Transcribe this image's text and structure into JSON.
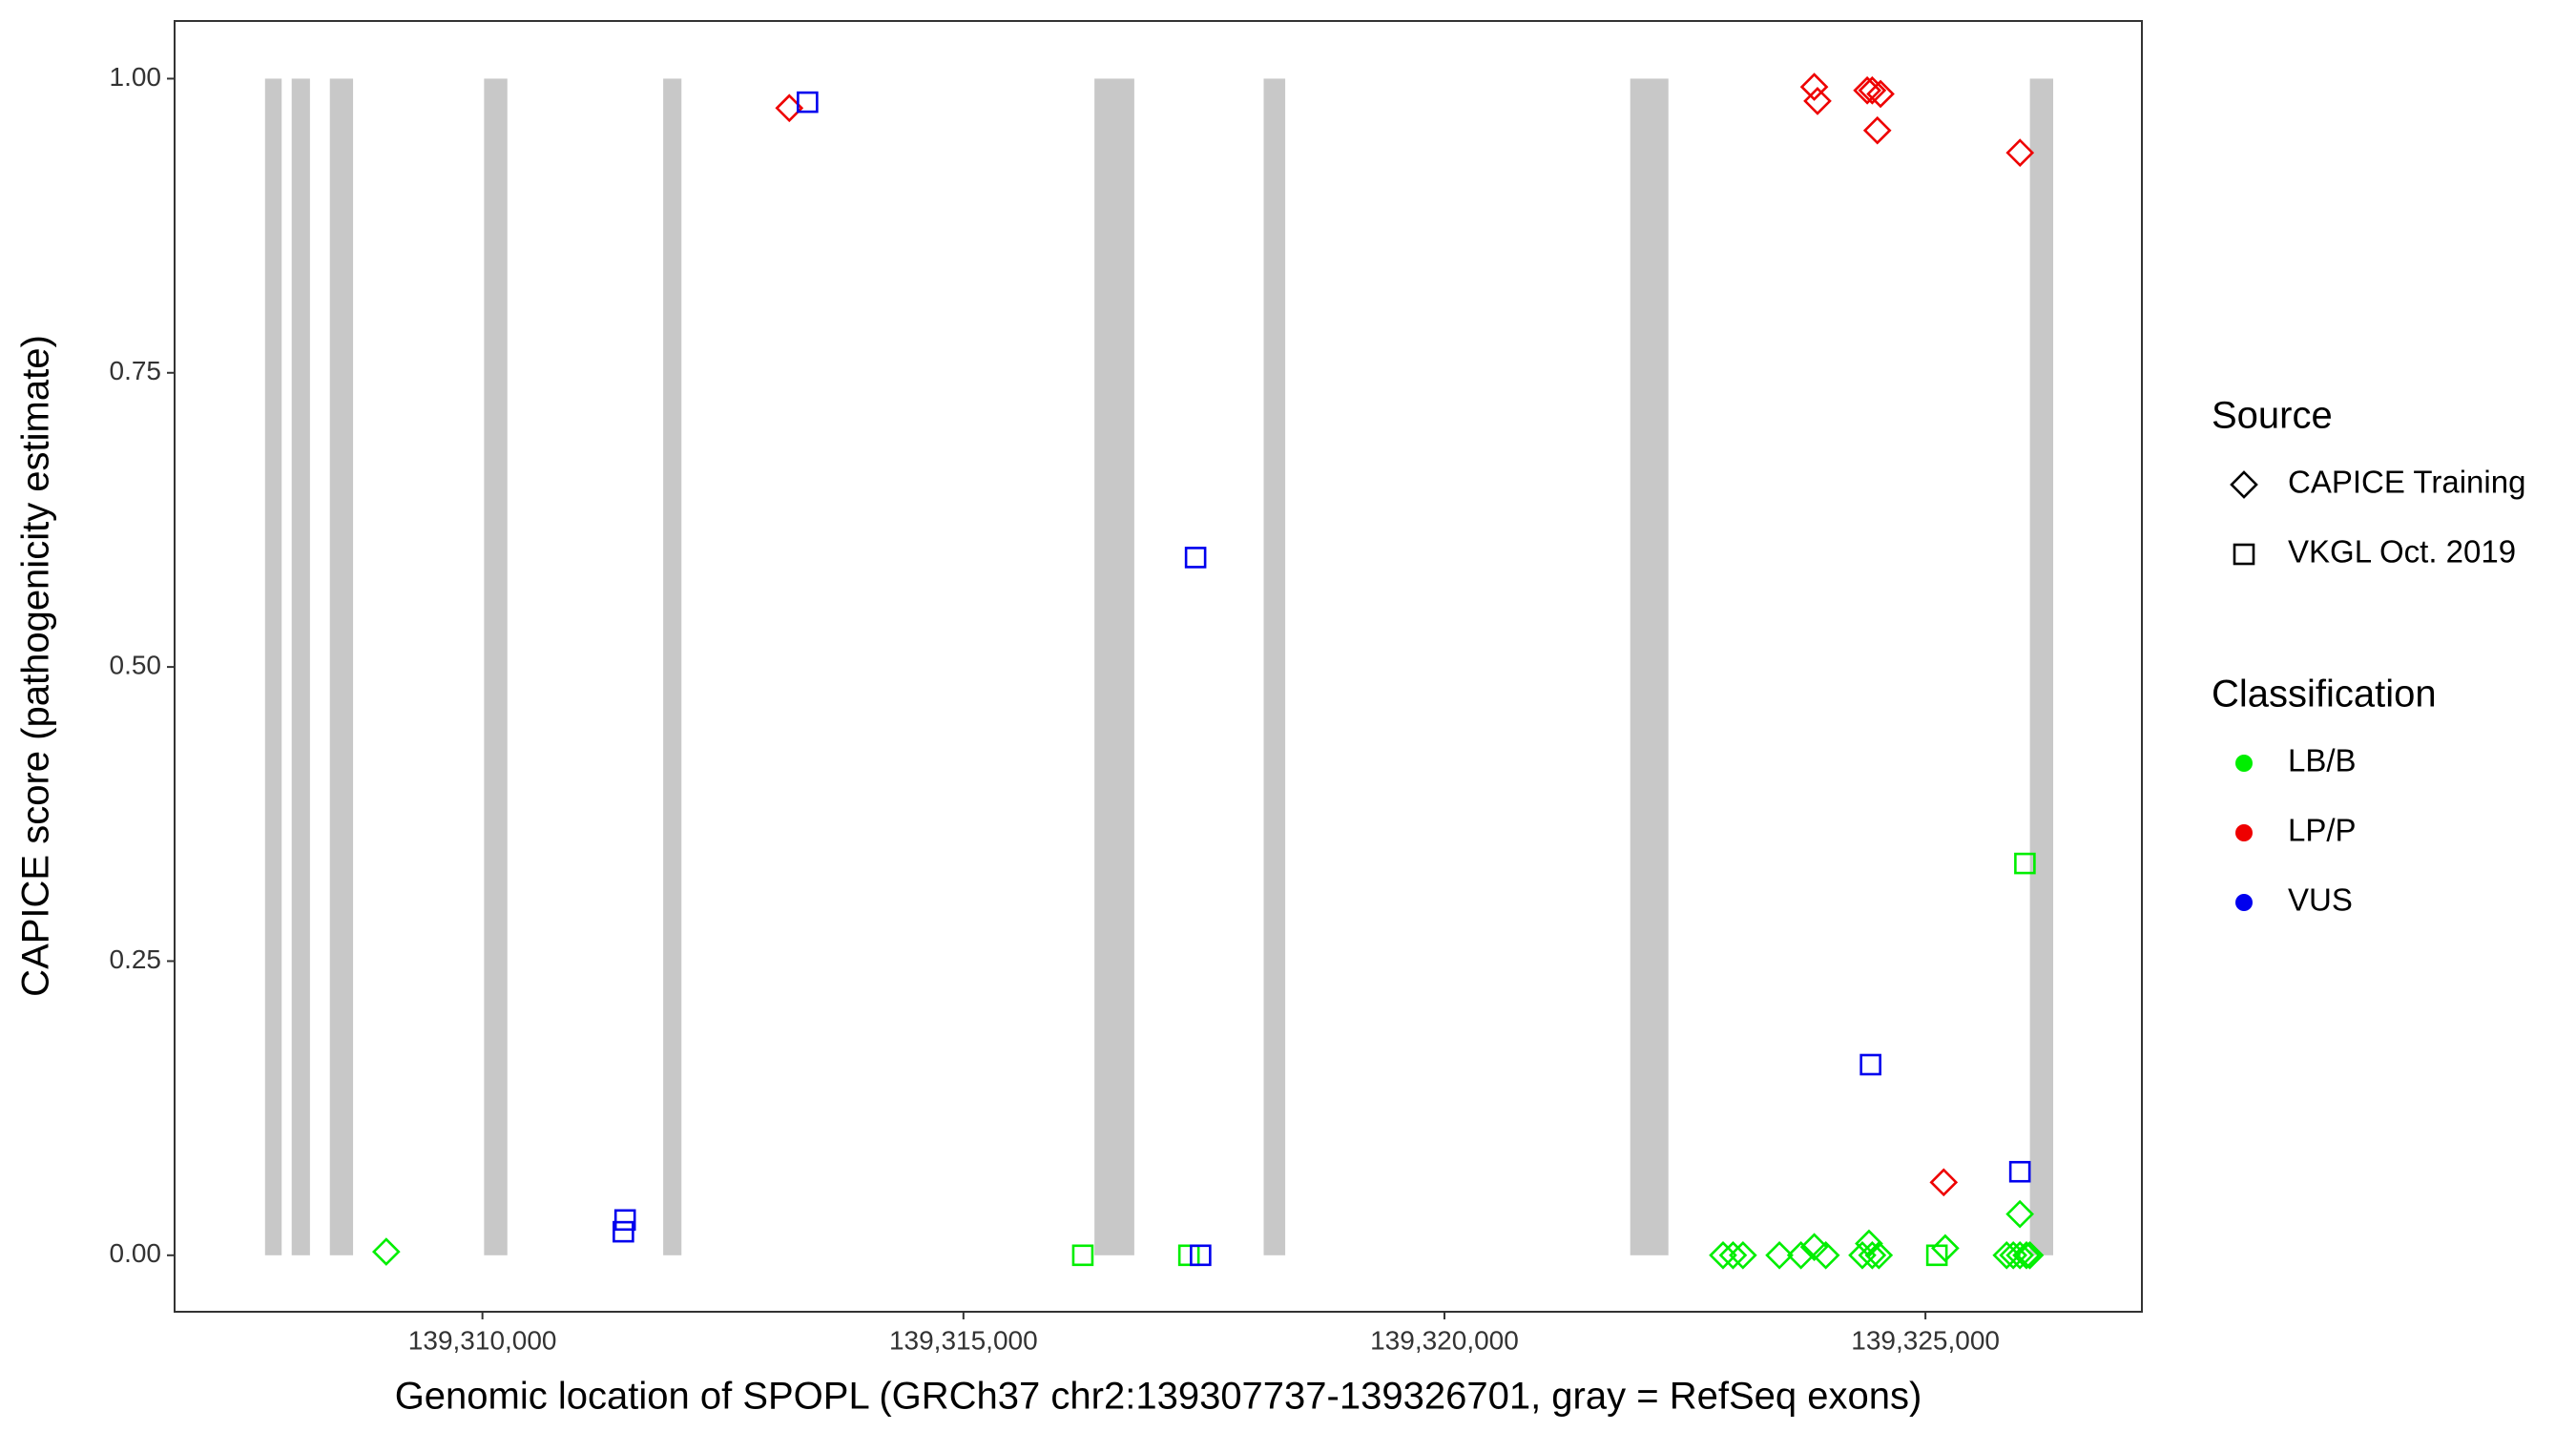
{
  "chart_data": {
    "type": "scatter",
    "x_label": "Genomic location of SPOPL (GRCh37 chr2:139307737-139326701, gray = RefSeq exons)",
    "y_label": "CAPICE score (pathogenicity estimate)",
    "xlim": [
      139306800,
      139327250
    ],
    "ylim": [
      -0.048,
      1.049
    ],
    "xticks": [
      {
        "value": 139310000,
        "label": "139,310,000"
      },
      {
        "value": 139315000,
        "label": "139,315,000"
      },
      {
        "value": 139320000,
        "label": "139,320,000"
      },
      {
        "value": 139325000,
        "label": "139,325,000"
      }
    ],
    "yticks": [
      {
        "value": 0,
        "label": "0.00"
      },
      {
        "value": 0.25,
        "label": "0.25"
      },
      {
        "value": 0.5,
        "label": "0.50"
      },
      {
        "value": 0.75,
        "label": "0.75"
      },
      {
        "value": 1,
        "label": "1.00"
      }
    ],
    "exon_color": "#c8c8c8",
    "exons": [
      [
        139307740,
        139307913
      ],
      [
        139308017,
        139308207
      ],
      [
        139308414,
        139308655
      ],
      [
        139310017,
        139310259
      ],
      [
        139311879,
        139312069
      ],
      [
        139316362,
        139316776
      ],
      [
        139318121,
        139318345
      ],
      [
        139321931,
        139322328
      ],
      [
        139326086,
        139326328
      ]
    ],
    "legend_source_title": "Source",
    "legend_class_title": "Classification",
    "sources": [
      {
        "name": "CAPICE Training",
        "shape": "diamond"
      },
      {
        "name": "VKGL Oct. 2019",
        "shape": "square"
      }
    ],
    "classes": [
      {
        "name": "LB/B",
        "color": "#00ee00"
      },
      {
        "name": "LP/P",
        "color": "#ee0000"
      },
      {
        "name": "VUS",
        "color": "#0000ee"
      }
    ],
    "series": [
      {
        "source": "CAPICE Training",
        "classification": "LB/B",
        "x": [
          139309000,
          139322896,
          139323000,
          139323103,
          139323482,
          139323706,
          139323844,
          139323964,
          139324344,
          139324413,
          139324447,
          139324516,
          139325206,
          139325844,
          139325913,
          139325982,
          139326050,
          139325982,
          139326085
        ],
        "values": [
          0.003,
          0,
          0,
          0,
          0,
          0,
          0.007,
          0,
          0,
          0.01,
          0,
          0,
          0.006,
          0,
          0,
          0,
          0,
          0.035,
          0
        ]
      },
      {
        "source": "CAPICE Training",
        "classification": "LP/P",
        "x": [
          139313190,
          139323844,
          139323878,
          139324395,
          139324447,
          139324533,
          139324500,
          139325983,
          139325190
        ],
        "values": [
          0.975,
          0.993,
          0.981,
          0.99,
          0.99,
          0.987,
          0.956,
          0.937,
          0.062
        ]
      },
      {
        "source": "VKGL Oct. 2019",
        "classification": "LB/B",
        "x": [
          139316241,
          139317344,
          139325119,
          139326034
        ],
        "values": [
          0,
          0,
          0,
          0.333
        ]
      },
      {
        "source": "VKGL Oct. 2019",
        "classification": "VUS",
        "x": [
          139313379,
          139311483,
          139311465,
          139317413,
          139317465,
          139324430,
          139325982
        ],
        "values": [
          0.98,
          0.03,
          0.02,
          0.593,
          0,
          0.162,
          0.071
        ]
      }
    ]
  }
}
